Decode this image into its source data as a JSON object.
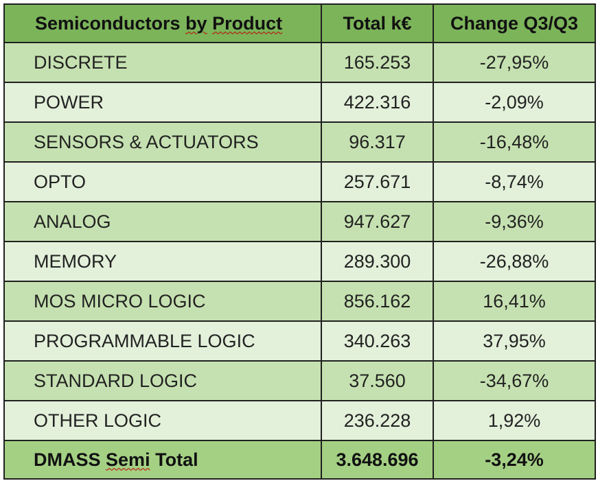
{
  "table": {
    "header": {
      "product_word1": "Semiconductors",
      "product_word2": "by",
      "product_word3": "Product",
      "total": "Total k€",
      "change": "Change Q3/Q3"
    },
    "rows": [
      {
        "name": "DISCRETE",
        "total": "165.253",
        "change": "-27,95%"
      },
      {
        "name": "POWER",
        "total": "422.316",
        "change": "-2,09%"
      },
      {
        "name": "SENSORS & ACTUATORS",
        "total": "96.317",
        "change": "-16,48%"
      },
      {
        "name": "OPTO",
        "total": "257.671",
        "change": "-8,74%"
      },
      {
        "name": "ANALOG",
        "total": "947.627",
        "change": "-9,36%"
      },
      {
        "name": "MEMORY",
        "total": "289.300",
        "change": "-26,88%"
      },
      {
        "name": "MOS MICRO LOGIC",
        "total": "856.162",
        "change": "16,41%"
      },
      {
        "name": "PROGRAMMABLE LOGIC",
        "total": "340.263",
        "change": "37,95%"
      },
      {
        "name": "STANDARD LOGIC",
        "total": "37.560",
        "change": "-34,67%"
      },
      {
        "name": "OTHER LOGIC",
        "total": "236.228",
        "change": "1,92%"
      }
    ],
    "footer": {
      "name_word1": "DMASS",
      "name_word2": "Semi",
      "name_word3": "Total",
      "total": "3.648.696",
      "change": "-3,24%"
    }
  }
}
